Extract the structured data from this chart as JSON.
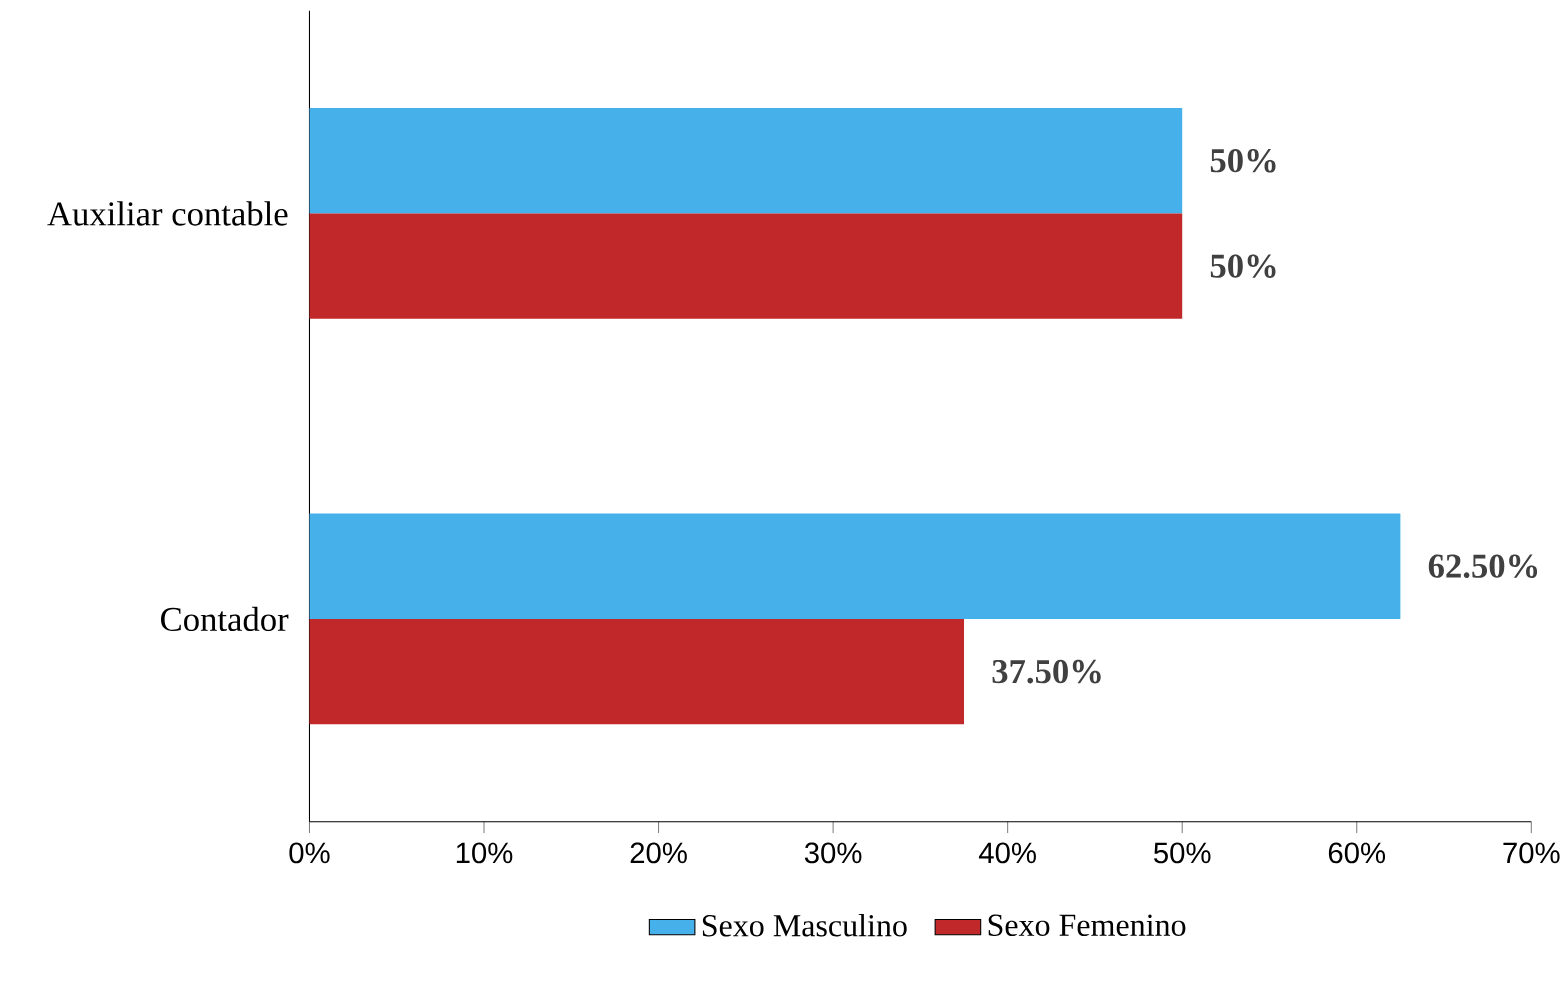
{
  "chart_data": {
    "type": "bar",
    "orientation": "horizontal",
    "categories": [
      "Auxiliar contable",
      "Contador"
    ],
    "series": [
      {
        "name": "Sexo Masculino",
        "color": "#45b0ea",
        "values": [
          50,
          62.5
        ],
        "value_labels": [
          "50%",
          "62.50%"
        ]
      },
      {
        "name": "Sexo Femenino",
        "color": "#c0282a",
        "values": [
          50,
          37.5
        ],
        "value_labels": [
          "50%",
          "37.50%"
        ]
      }
    ],
    "xlim": [
      0,
      70
    ],
    "xticks": [
      {
        "value": 0,
        "label": "0%"
      },
      {
        "value": 10,
        "label": "10%"
      },
      {
        "value": 20,
        "label": "20%"
      },
      {
        "value": 30,
        "label": "30%"
      },
      {
        "value": 40,
        "label": "40%"
      },
      {
        "value": 50,
        "label": "50%"
      },
      {
        "value": 60,
        "label": "60%"
      },
      {
        "value": 70,
        "label": "70%"
      }
    ],
    "legend": "bottom"
  }
}
